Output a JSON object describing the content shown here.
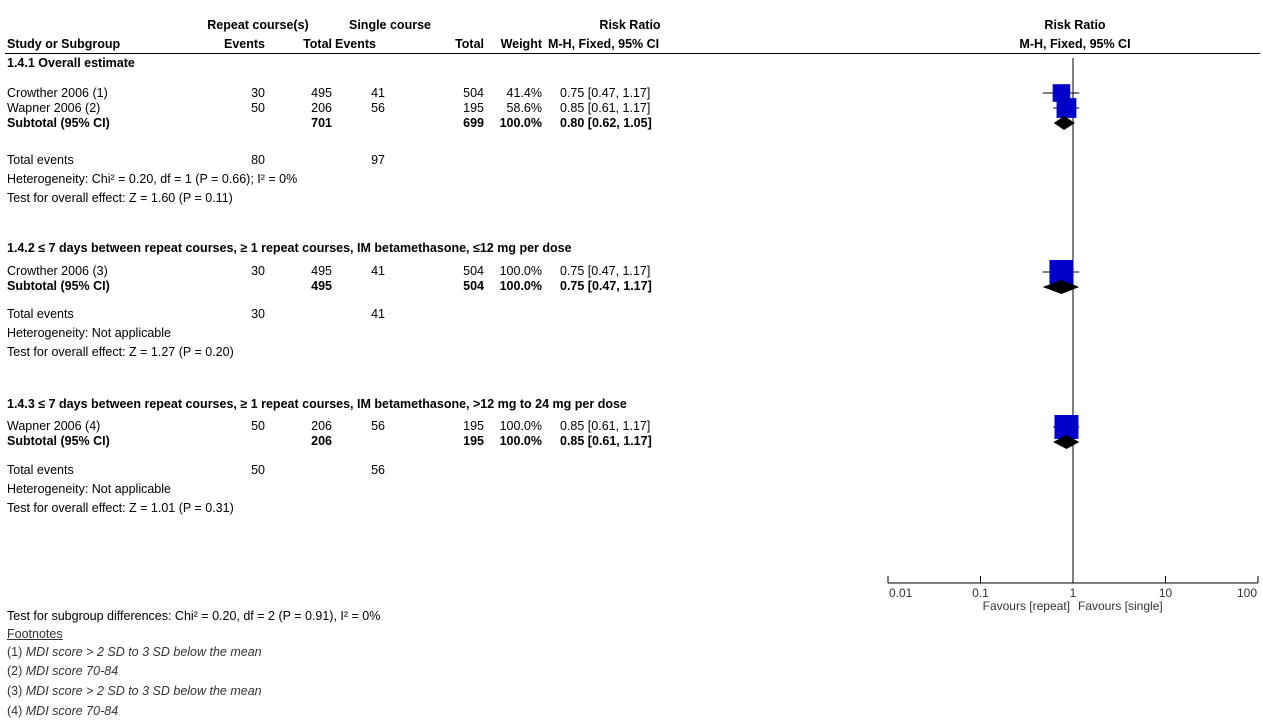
{
  "header": {
    "group1": "Repeat course(s)",
    "group2": "Single course",
    "rr_title": "Risk Ratio",
    "plot_title": "Risk Ratio",
    "col_study": "Study or Subgroup",
    "col_events1": "Events",
    "col_total1": "Total",
    "col_events2": "Events",
    "col_total2": "Total",
    "col_weight": "Weight",
    "col_method": "M-H, Fixed, 95% CI",
    "plot_method": "M-H, Fixed, 95% CI"
  },
  "subgroups": [
    {
      "title": "1.4.1 Overall estimate",
      "studies": [
        {
          "name": "Crowther 2006 (1)",
          "e1": "30",
          "t1": "495",
          "e2": "41",
          "t2": "504",
          "weight": "41.4%",
          "ci": "0.75 [0.47, 1.17]"
        },
        {
          "name": "Wapner 2006 (2)",
          "e1": "50",
          "t1": "206",
          "e2": "56",
          "t2": "195",
          "weight": "58.6%",
          "ci": "0.85 [0.61, 1.17]"
        }
      ],
      "subtotal": {
        "label": "Subtotal (95% CI)",
        "t1": "701",
        "t2": "699",
        "weight": "100.0%",
        "ci": "0.80 [0.62, 1.05]"
      },
      "total_events": {
        "label": "Total events",
        "e1": "80",
        "e2": "97"
      },
      "heterogeneity": "Heterogeneity: Chi² = 0.20, df = 1 (P = 0.66); I² = 0%",
      "overall": "Test for overall effect: Z = 1.60 (P = 0.11)"
    },
    {
      "title": "1.4.2 ≤ 7 days between repeat courses, ≥ 1 repeat courses, IM betamethasone, ≤12 mg per dose",
      "studies": [
        {
          "name": "Crowther 2006 (3)",
          "e1": "30",
          "t1": "495",
          "e2": "41",
          "t2": "504",
          "weight": "100.0%",
          "ci": "0.75 [0.47, 1.17]"
        }
      ],
      "subtotal": {
        "label": "Subtotal (95% CI)",
        "t1": "495",
        "t2": "504",
        "weight": "100.0%",
        "ci": "0.75 [0.47, 1.17]"
      },
      "total_events": {
        "label": "Total events",
        "e1": "30",
        "e2": "41"
      },
      "heterogeneity": "Heterogeneity: Not applicable",
      "overall": "Test for overall effect: Z = 1.27 (P = 0.20)"
    },
    {
      "title": "1.4.3 ≤ 7 days between repeat courses, ≥ 1 repeat courses, IM betamethasone, >12 mg to 24 mg per dose",
      "studies": [
        {
          "name": "Wapner 2006 (4)",
          "e1": "50",
          "t1": "206",
          "e2": "56",
          "t2": "195",
          "weight": "100.0%",
          "ci": "0.85 [0.61, 1.17]"
        }
      ],
      "subtotal": {
        "label": "Subtotal (95% CI)",
        "t1": "206",
        "t2": "195",
        "weight": "100.0%",
        "ci": "0.85 [0.61, 1.17]"
      },
      "total_events": {
        "label": "Total events",
        "e1": "50",
        "e2": "56"
      },
      "heterogeneity": "Heterogeneity: Not applicable",
      "overall": "Test for overall effect: Z = 1.01 (P = 0.31)"
    }
  ],
  "subgroup_test": "Test for subgroup differences: Chi² = 0.20, df = 2 (P = 0.91), I² = 0%",
  "footnotes": {
    "title": "Footnotes",
    "items": [
      {
        "num": "(1) ",
        "text": "MDI score > 2 SD to 3 SD below the mean"
      },
      {
        "num": "(2) ",
        "text": "MDI score 70-84"
      },
      {
        "num": "(3) ",
        "text": "MDI score > 2 SD to 3 SD below the mean"
      },
      {
        "num": "(4) ",
        "text": "MDI score 70-84"
      }
    ]
  },
  "colors": {
    "square": "#0000c8",
    "diamond": "#000000",
    "line": "#000000"
  },
  "chart_data": {
    "type": "scatter",
    "title": "Risk Ratio",
    "subtitle": "M-H, Fixed, 95% CI",
    "x_scale": "log",
    "xlim": [
      0.01,
      100
    ],
    "null_line": 1,
    "x_ticks": [
      0.01,
      0.1,
      1,
      10,
      100
    ],
    "x_tick_labels": [
      "0.01",
      "0.1",
      "1",
      "10",
      "100"
    ],
    "favours_left": "Favours [repeat]",
    "favours_right": "Favours [single]",
    "markers": [
      {
        "subgroup": 0,
        "kind": "study",
        "label": "Crowther 2006 (1)",
        "rr": 0.75,
        "lo": 0.47,
        "hi": 1.17,
        "weight": 41.4
      },
      {
        "subgroup": 0,
        "kind": "study",
        "label": "Wapner 2006 (2)",
        "rr": 0.85,
        "lo": 0.61,
        "hi": 1.17,
        "weight": 58.6
      },
      {
        "subgroup": 0,
        "kind": "subtotal",
        "label": "Subtotal (95% CI)",
        "rr": 0.8,
        "lo": 0.62,
        "hi": 1.05,
        "weight": 100
      },
      {
        "subgroup": 1,
        "kind": "study",
        "label": "Crowther 2006 (3)",
        "rr": 0.75,
        "lo": 0.47,
        "hi": 1.17,
        "weight": 100
      },
      {
        "subgroup": 1,
        "kind": "subtotal",
        "label": "Subtotal (95% CI)",
        "rr": 0.75,
        "lo": 0.47,
        "hi": 1.17,
        "weight": 100
      },
      {
        "subgroup": 2,
        "kind": "study",
        "label": "Wapner 2006 (4)",
        "rr": 0.85,
        "lo": 0.61,
        "hi": 1.17,
        "weight": 100
      },
      {
        "subgroup": 2,
        "kind": "subtotal",
        "label": "Subtotal (95% CI)",
        "rr": 0.85,
        "lo": 0.61,
        "hi": 1.17,
        "weight": 100
      }
    ]
  }
}
